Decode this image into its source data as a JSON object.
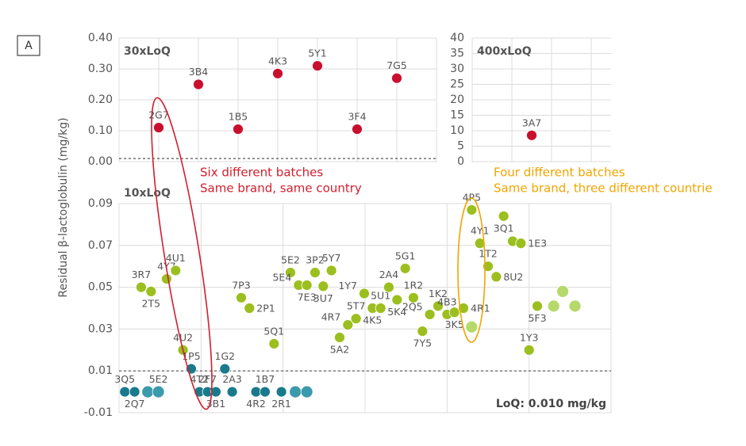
{
  "panel_label": "A",
  "y_label": "Residual β-lactoglobulin (mg/kg)",
  "chart_data": [
    {
      "type": "scatter",
      "title": "30xLoQ",
      "xlim": [
        0,
        8
      ],
      "ylim": [
        0,
        0.4
      ],
      "yticks": [
        {
          "value": 0,
          "label": "0.00"
        },
        {
          "value": 0.1,
          "label": "0.10"
        },
        {
          "value": 0.2,
          "label": "0.20"
        },
        {
          "value": 0.3,
          "label": "0.30"
        },
        {
          "value": 0.4,
          "label": "0.40"
        }
      ],
      "loq": 0.01,
      "grid": true,
      "series": [
        {
          "color": "#c8102e",
          "x": [
            1,
            2,
            3,
            4,
            5,
            6,
            7
          ],
          "values": [
            0.11,
            0.25,
            0.105,
            0.285,
            0.31,
            0.105,
            0.27
          ],
          "labels": [
            "2G7",
            "3B4",
            "1B5",
            "4K3",
            "5Y1",
            "3F4",
            "7G5"
          ]
        }
      ],
      "annotations": [
        "Six different batches",
        "Same brand, same country"
      ]
    },
    {
      "type": "scatter",
      "title": "400xLoQ",
      "xlim": [
        0,
        3.5
      ],
      "ylim": [
        0,
        40
      ],
      "yticks": [
        0,
        5,
        10,
        15,
        20,
        25,
        30,
        35,
        40
      ],
      "grid": true,
      "series": [
        {
          "color": "#c8102e",
          "x": [
            1.5
          ],
          "values": [
            8.5
          ],
          "labels": [
            "3A7"
          ]
        }
      ],
      "annotations": [
        "Four different batches",
        "Same brand, three different countrie"
      ]
    },
    {
      "type": "scatter",
      "title": "10xLoQ",
      "xlim": [
        0,
        6
      ],
      "ylim": [
        -0.01,
        0.09
      ],
      "yticks": [
        -0.01,
        0.01,
        0.03,
        0.05,
        0.07,
        0.09
      ],
      "loq": 0.01,
      "loq_label": "LoQ: 0.010 mg/kg",
      "grid": true,
      "series": [
        {
          "color": "#9bbf1e",
          "x": [
            0.27,
            0.39,
            0.58,
            0.69,
            0.78,
            1.49,
            1.59,
            1.89,
            2.09,
            2.19,
            2.29,
            2.39,
            2.49,
            2.59,
            2.69,
            2.79,
            2.89,
            2.99,
            3.09,
            3.19,
            3.29,
            3.39,
            3.49,
            3.59,
            3.7,
            3.79,
            3.89,
            4.0,
            4.09,
            4.2,
            4.3,
            4.4,
            4.5,
            4.6,
            4.69,
            4.8,
            4.9,
            5.0,
            5.1
          ],
          "values": [
            0.05,
            0.048,
            0.054,
            0.058,
            0.02,
            0.045,
            0.04,
            0.023,
            0.057,
            0.051,
            0.051,
            0.057,
            0.0505,
            0.058,
            0.026,
            0.032,
            0.035,
            0.047,
            0.04,
            0.04,
            0.05,
            0.044,
            0.059,
            0.045,
            0.029,
            0.037,
            0.041,
            0.037,
            0.038,
            0.04,
            0.087,
            0.071,
            0.06,
            0.055,
            0.084,
            0.072,
            0.071,
            0.02,
            0.041
          ],
          "labels": [
            "3R7",
            "2T5",
            "4Y7",
            "4U1",
            "4U2",
            "7P3",
            "2P1",
            "5Q1",
            "5E2",
            "5E4",
            "7E3",
            "3P2",
            "3U7",
            "5Y7",
            "5A2",
            "4R7",
            "5T7",
            "1Y7",
            "4K5",
            "5U1",
            "2A4",
            "5K4",
            "5G1",
            "1R2",
            "7Y5",
            "2Q5",
            "1K2",
            "4B3",
            "3K5",
            "4R1",
            "4P5",
            "4Y1",
            "1T2",
            "8U2",
            "3Q1",
            null,
            "1E3",
            "1Y3",
            "5F3"
          ]
        },
        {
          "color": "#b5d96a",
          "x": [
            4.3,
            5.3,
            5.41,
            5.56
          ],
          "values": [
            0.031,
            0.041,
            0.048,
            0.041
          ]
        },
        {
          "color": "#1a7a8c",
          "x": [
            0.07,
            0.19,
            0.88,
            0.98,
            1.08,
            1.18,
            1.29,
            1.38,
            1.67,
            1.78,
            1.98
          ],
          "values": [
            0,
            0,
            0.011,
            0,
            0,
            0,
            0.011,
            0,
            0,
            0,
            0
          ],
          "labels": [
            "3Q5",
            "2Q7",
            "1P5",
            "4T2",
            "2F7",
            "3B1",
            "1G2",
            "2A3",
            "4R2",
            "1B7",
            "2R1"
          ]
        },
        {
          "color": "#3b9aab",
          "x": [
            0.35,
            0.48,
            2.15,
            2.29
          ],
          "values": [
            0,
            0,
            0,
            0
          ],
          "labels": [
            null,
            "5E2",
            null,
            null
          ]
        }
      ]
    }
  ]
}
